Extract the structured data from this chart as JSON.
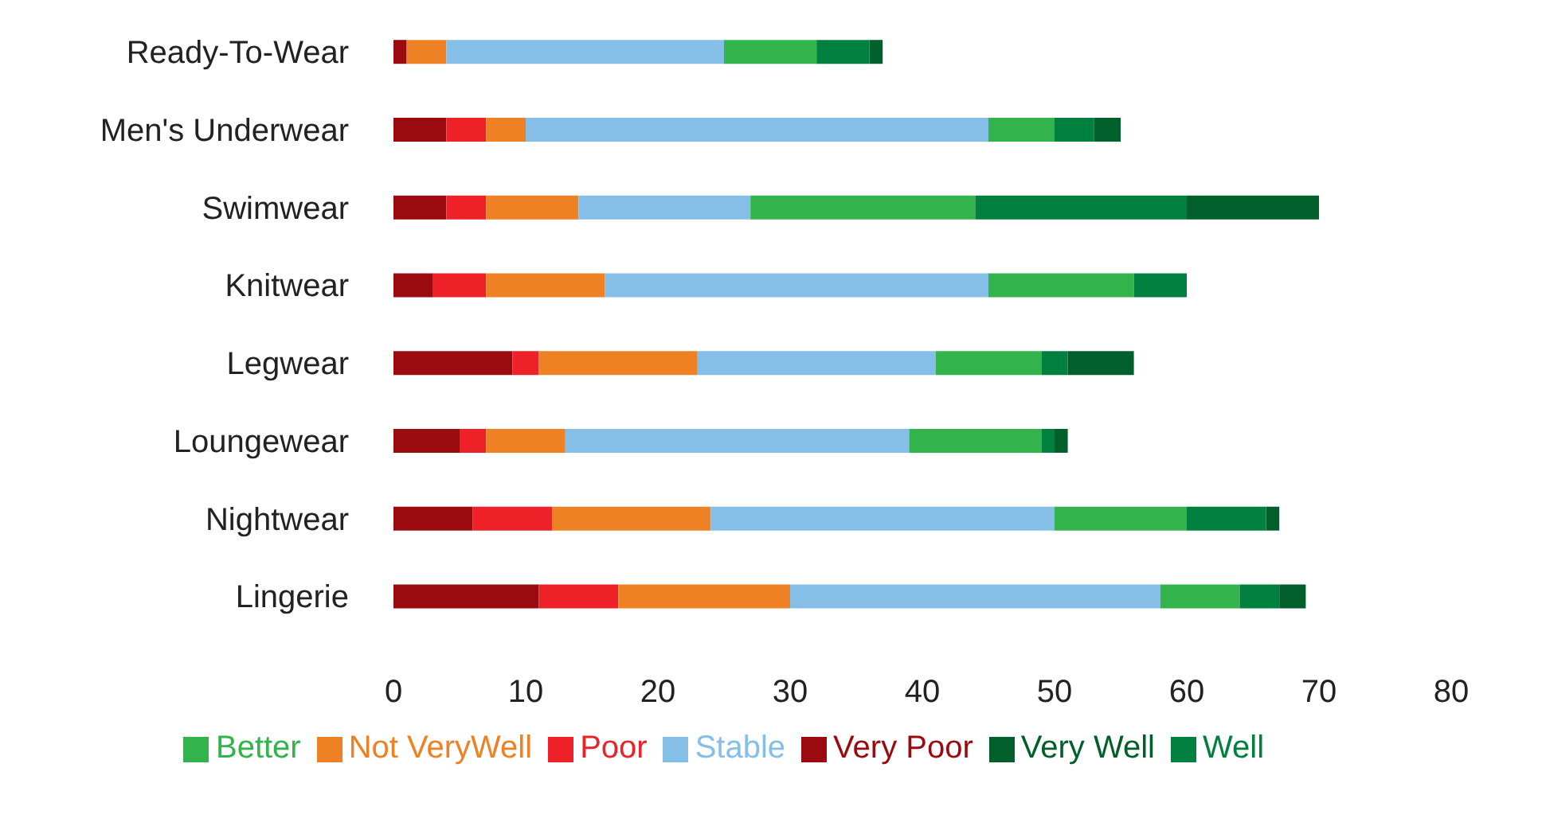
{
  "chart_data": {
    "type": "bar",
    "orientation": "horizontal",
    "stacked": true,
    "legend": "bottom",
    "grid": false,
    "categories": [
      "Ready-To-Wear",
      "Men's Underwear",
      "Swimwear",
      "Knitwear",
      "Legwear",
      "Loungewear",
      "Nightwear",
      "Lingerie"
    ],
    "xlim": [
      0,
      80
    ],
    "xticks": [
      0,
      10,
      20,
      30,
      40,
      50,
      60,
      70,
      80
    ],
    "series": [
      {
        "name": "Very Poor",
        "color": "#9b0a0e",
        "values": [
          1,
          4,
          4,
          3,
          9,
          5,
          6,
          11
        ]
      },
      {
        "name": "Poor",
        "color": "#ee2028",
        "values": [
          0,
          3,
          3,
          4,
          2,
          2,
          6,
          6
        ]
      },
      {
        "name": "Not VeryWell",
        "color": "#ef8125",
        "values": [
          3,
          3,
          7,
          9,
          12,
          6,
          12,
          13
        ]
      },
      {
        "name": "Stable",
        "color": "#85bfe8",
        "values": [
          21,
          35,
          13,
          29,
          18,
          26,
          26,
          28
        ]
      },
      {
        "name": "Better",
        "color": "#32b34b",
        "values": [
          7,
          5,
          17,
          11,
          8,
          10,
          10,
          6
        ]
      },
      {
        "name": "Well",
        "color": "#00803e",
        "values": [
          4,
          3,
          16,
          4,
          2,
          1,
          6,
          3
        ]
      },
      {
        "name": "Very Well",
        "color": "#005f2a",
        "values": [
          1,
          2,
          10,
          0,
          5,
          1,
          1,
          2
        ]
      }
    ]
  }
}
